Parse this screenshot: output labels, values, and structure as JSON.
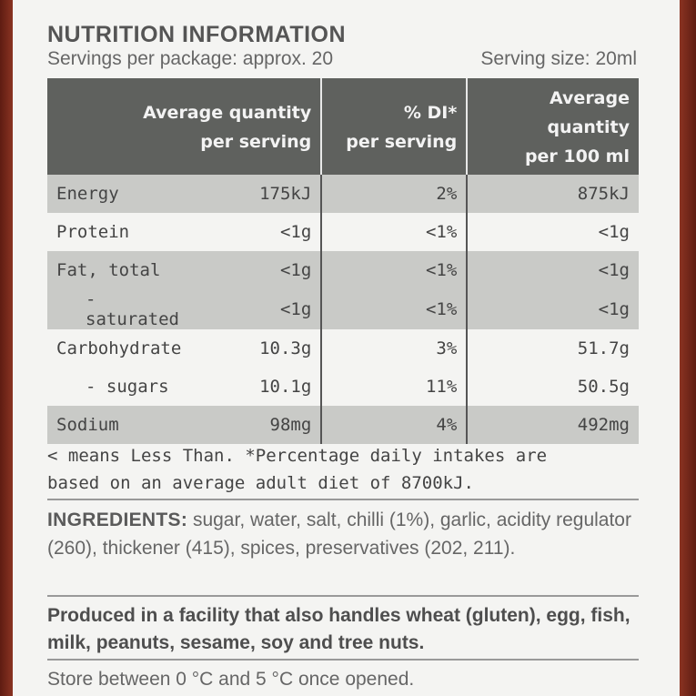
{
  "nutrition": {
    "title": "NUTRITION INFORMATION",
    "servings_per_package": "Servings per package: approx. 20",
    "serving_size": "Serving size: 20ml",
    "headers": {
      "col1_line1": "Average quantity",
      "col1_line2": "per serving",
      "col2_line1": "% DI*",
      "col2_line2": "per serving",
      "col3_line1": "Average quantity",
      "col3_line2": "per 100 ml"
    },
    "rows": [
      {
        "name": "Energy",
        "per_serving": "175kJ",
        "di": "2%",
        "per_100ml": "875kJ"
      },
      {
        "name": "Protein",
        "per_serving": "<1g",
        "di": "<1%",
        "per_100ml": "<1g"
      },
      {
        "name": "Fat, total",
        "per_serving": "<1g",
        "di": "<1%",
        "per_100ml": "<1g"
      },
      {
        "name": "- saturated",
        "per_serving": "<1g",
        "di": "<1%",
        "per_100ml": "<1g"
      },
      {
        "name": "Carbohydrate",
        "per_serving": "10.3g",
        "di": "3%",
        "per_100ml": "51.7g"
      },
      {
        "name": "- sugars",
        "per_serving": "10.1g",
        "di": "11%",
        "per_100ml": "50.5g"
      },
      {
        "name": "Sodium",
        "per_serving": "98mg",
        "di": "4%",
        "per_100ml": "492mg"
      }
    ]
  },
  "footnote": {
    "line1": "< means Less Than. *Percentage daily intakes are",
    "line2": "based on an average adult diet of 8700kJ."
  },
  "ingredients": {
    "label": "INGREDIENTS:",
    "text": " sugar, water, salt, chilli (1%), garlic, acidity regulator (260), thickener (415), spices, preservatives (202, 211)."
  },
  "allergen": "Produced in a facility that also handles wheat (gluten), egg, fish, milk, peanuts, sesame, soy and tree nuts.",
  "storage": "Store between 0 °C and 5 °C once opened.",
  "colors": {
    "header_bg": "#5f615e",
    "shade_row": "#c9cac7",
    "label_bg": "#f4f4f2",
    "bottle": "#7a2a1c"
  }
}
